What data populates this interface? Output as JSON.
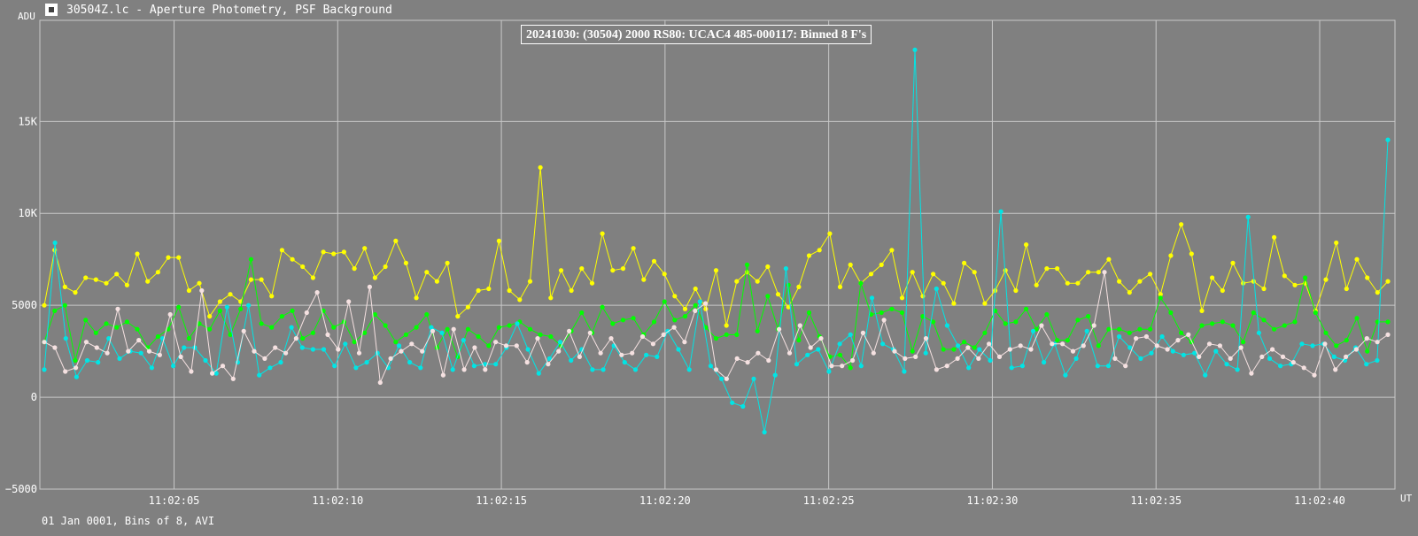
{
  "window": {
    "title": "30504Z.lc - Aperture Photometry, PSF Background",
    "icon": "light-curve-app-icon"
  },
  "footer": "01 Jan 0001, Bins of 8, AVI",
  "chart_data": {
    "type": "line",
    "title": "20241030: (30504) 2000 RS80: UCAC4 485-000117: Binned 8 F's",
    "ylabel": "ADU",
    "xlabel": "UT",
    "ylim": [
      -5000,
      20500
    ],
    "x_time_range": [
      "11:02:00.900",
      "11:02:42.300"
    ],
    "y_ticks": [
      {
        "v": -5000,
        "label": "−5000"
      },
      {
        "v": 0,
        "label": "0"
      },
      {
        "v": 5000,
        "label": "5000"
      },
      {
        "v": 10000,
        "label": "10K"
      },
      {
        "v": 15000,
        "label": "15K"
      }
    ],
    "x_ticks": [
      "11:02:05",
      "11:02:10",
      "11:02:15",
      "11:02:20",
      "11:02:25",
      "11:02:30",
      "11:02:35",
      "11:02:40"
    ],
    "grid": true,
    "series": [
      {
        "color": "#ffff00",
        "values": [
          5000,
          8000,
          6000,
          5700,
          6500,
          6400,
          6200,
          6700,
          6100,
          7800,
          6300,
          6800,
          7600,
          7600,
          5800,
          6200,
          4400,
          5200,
          5600,
          5200,
          6400,
          6400,
          5500,
          8000,
          7500,
          7100,
          6500,
          7900,
          7800,
          7900,
          7000,
          8100,
          6500,
          7100,
          8500,
          7300,
          5400,
          6800,
          6300,
          7300,
          4400,
          4900,
          5800,
          5900,
          8500,
          5800,
          5300,
          6300,
          12500,
          5400,
          6900,
          5800,
          7000,
          6200,
          8900,
          6900,
          7000,
          8100,
          6400,
          7400,
          6700,
          5500,
          4800,
          5900,
          4800,
          6900,
          3900,
          6300,
          6800,
          6300,
          7100,
          5600,
          4900,
          6000,
          7700,
          8000,
          8900,
          6000,
          7200,
          6200,
          6700,
          7200,
          8000,
          5400,
          6800,
          5500,
          6700,
          6200,
          5100,
          7300,
          6800,
          5100,
          5800,
          6900,
          5800,
          8300,
          6100,
          7000,
          7000,
          6200,
          6200,
          6800,
          6800,
          7500,
          6300,
          5700,
          6300,
          6700,
          5600,
          7700,
          9400,
          7800,
          4700,
          6500,
          5800,
          7300,
          6200,
          6300,
          5900,
          8700,
          6600,
          6100,
          6200,
          4700,
          6400,
          8400,
          5900,
          7500,
          6500,
          5700,
          6300
        ]
      },
      {
        "color": "#00ff00",
        "values": [
          3000,
          4700,
          5000,
          2000,
          4200,
          3500,
          4000,
          3800,
          4100,
          3700,
          2700,
          3300,
          3700,
          4900,
          3200,
          4000,
          3700,
          4700,
          3400,
          4800,
          7500,
          4000,
          3800,
          4400,
          4700,
          3200,
          3500,
          4700,
          3800,
          4100,
          3000,
          3500,
          4500,
          3900,
          3000,
          3400,
          3800,
          4500,
          2700,
          3700,
          2200,
          3700,
          3300,
          2800,
          3800,
          3900,
          4100,
          3700,
          3400,
          3300,
          2800,
          3600,
          4600,
          3500,
          4900,
          4000,
          4200,
          4300,
          3400,
          4100,
          5200,
          4200,
          4400,
          5000,
          3800,
          3200,
          3400,
          3400,
          7200,
          3600,
          5500,
          3700,
          6100,
          3100,
          4600,
          3300,
          2200,
          2300,
          1600,
          6200,
          4500,
          4600,
          4800,
          4600,
          2500,
          4400,
          4100,
          2600,
          2600,
          3000,
          2700,
          3500,
          4700,
          4000,
          4100,
          4800,
          3700,
          4500,
          3100,
          3100,
          4200,
          4400,
          2800,
          3700,
          3700,
          3500,
          3700,
          3700,
          5400,
          4600,
          3500,
          3000,
          3900,
          4000,
          4100,
          3900,
          3000,
          4600,
          4200,
          3700,
          3900,
          4100,
          6500,
          4600,
          3500,
          2800,
          3100,
          4300,
          2500,
          4100,
          4100
        ]
      },
      {
        "color": "#00e5e5",
        "values": [
          1500,
          8400,
          3200,
          1100,
          2000,
          1900,
          3200,
          2100,
          2500,
          2400,
          1600,
          3200,
          1700,
          2700,
          2700,
          2000,
          1300,
          4900,
          1900,
          5000,
          1200,
          1600,
          1900,
          3800,
          2700,
          2600,
          2600,
          1700,
          2900,
          1600,
          1900,
          2400,
          1600,
          2800,
          1900,
          1600,
          3800,
          3500,
          1500,
          3100,
          1700,
          1800,
          1800,
          2700,
          4000,
          2600,
          1300,
          2100,
          3000,
          2000,
          2600,
          1500,
          1500,
          2800,
          1900,
          1500,
          2300,
          2200,
          3600,
          2600,
          1500,
          5200,
          1700,
          1000,
          -300,
          -500,
          1000,
          -1900,
          1200,
          7000,
          1800,
          2300,
          2600,
          1400,
          2900,
          3400,
          1700,
          5400,
          2900,
          2600,
          1400,
          18900,
          2400,
          5900,
          3900,
          2800,
          1600,
          2600,
          2000,
          10100,
          1600,
          1700,
          3600,
          1900,
          2900,
          1200,
          2100,
          3600,
          1700,
          1700,
          3300,
          2700,
          2100,
          2400,
          3300,
          2500,
          2300,
          2400,
          1200,
          2500,
          1800,
          1500,
          9800,
          3500,
          2100,
          1700,
          1800,
          2900,
          2800,
          2900,
          2200,
          2000,
          2700,
          1800,
          2000,
          14000
        ]
      },
      {
        "color": "#f5e1e1",
        "values": [
          3000,
          2700,
          1400,
          1600,
          3000,
          2700,
          2400,
          4800,
          2500,
          3100,
          2500,
          2300,
          4500,
          2200,
          1400,
          5800,
          1300,
          1700,
          1000,
          3600,
          2500,
          2100,
          2700,
          2400,
          3200,
          4600,
          5700,
          3400,
          2600,
          5200,
          2400,
          6000,
          800,
          2100,
          2500,
          2900,
          2500,
          3600,
          1200,
          3700,
          1500,
          2700,
          1500,
          3000,
          2800,
          2800,
          1900,
          3200,
          1800,
          2500,
          3600,
          2200,
          3500,
          2400,
          3200,
          2300,
          2400,
          3300,
          2900,
          3400,
          3800,
          3000,
          4700,
          5100,
          1500,
          1000,
          2100,
          1900,
          2400,
          2000,
          3700,
          2400,
          3900,
          2700,
          3200,
          1700,
          1700,
          2000,
          3500,
          2400,
          4200,
          2500,
          2100,
          2200,
          3200,
          1500,
          1700,
          2100,
          2700,
          2100,
          2900,
          2200,
          2600,
          2800,
          2600,
          3900,
          2900,
          2900,
          2500,
          2800,
          3900,
          6800,
          2100,
          1700,
          3200,
          3300,
          2800,
          2600,
          3100,
          3400,
          2200,
          2900,
          2800,
          2100,
          2700,
          1300,
          2200,
          2600,
          2200,
          1900,
          1600,
          1200,
          2900,
          1500,
          2200,
          2600,
          3200,
          3000,
          3400
        ]
      }
    ]
  }
}
